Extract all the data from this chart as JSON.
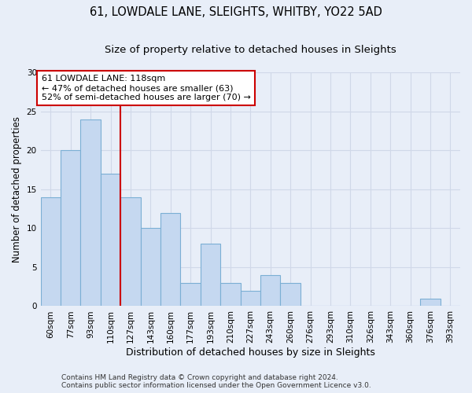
{
  "title1": "61, LOWDALE LANE, SLEIGHTS, WHITBY, YO22 5AD",
  "title2": "Size of property relative to detached houses in Sleights",
  "xlabel": "Distribution of detached houses by size in Sleights",
  "ylabel": "Number of detached properties",
  "categories": [
    "60sqm",
    "77sqm",
    "93sqm",
    "110sqm",
    "127sqm",
    "143sqm",
    "160sqm",
    "177sqm",
    "193sqm",
    "210sqm",
    "227sqm",
    "243sqm",
    "260sqm",
    "276sqm",
    "293sqm",
    "310sqm",
    "326sqm",
    "343sqm",
    "360sqm",
    "376sqm",
    "393sqm"
  ],
  "values": [
    14,
    20,
    24,
    17,
    14,
    10,
    12,
    3,
    8,
    3,
    2,
    4,
    3,
    0,
    0,
    0,
    0,
    0,
    0,
    1,
    0
  ],
  "bar_color": "#c5d8f0",
  "bar_edge_color": "#7bafd4",
  "vline_x_index": 3,
  "vline_color": "#cc0000",
  "annotation_line1": "61 LOWDALE LANE: 118sqm",
  "annotation_line2": "← 47% of detached houses are smaller (63)",
  "annotation_line3": "52% of semi-detached houses are larger (70) →",
  "annotation_box_color": "#ffffff",
  "annotation_box_edge_color": "#cc0000",
  "ylim": [
    0,
    30
  ],
  "yticks": [
    0,
    5,
    10,
    15,
    20,
    25,
    30
  ],
  "background_color": "#e8eef8",
  "grid_color": "#d0d8e8",
  "footer_line1": "Contains HM Land Registry data © Crown copyright and database right 2024.",
  "footer_line2": "Contains public sector information licensed under the Open Government Licence v3.0.",
  "title1_fontsize": 10.5,
  "title2_fontsize": 9.5,
  "xlabel_fontsize": 9,
  "ylabel_fontsize": 8.5,
  "tick_fontsize": 7.5,
  "annotation_fontsize": 8,
  "footer_fontsize": 6.5
}
